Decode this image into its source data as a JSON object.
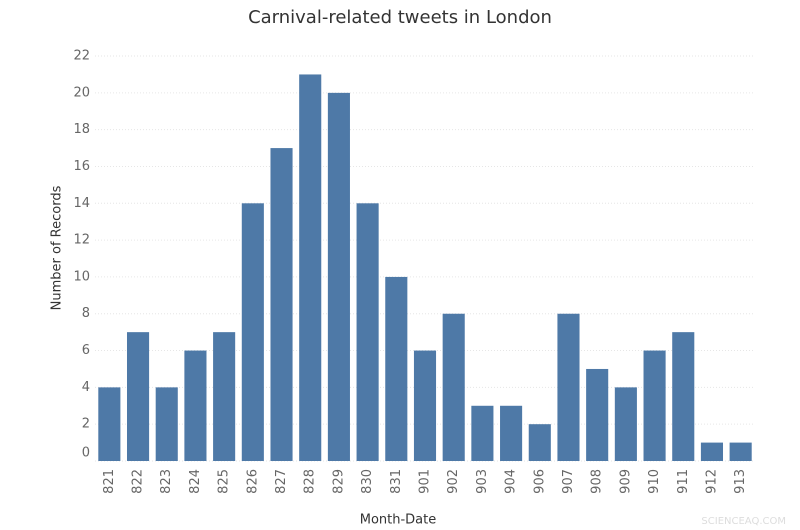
{
  "chart_data": {
    "type": "bar",
    "title": "Carnival-related tweets in London",
    "x_label": "Month-Date",
    "y_label": "Number of Records",
    "categories": [
      "821",
      "822",
      "823",
      "824",
      "825",
      "826",
      "827",
      "828",
      "829",
      "830",
      "831",
      "901",
      "902",
      "903",
      "904",
      "906",
      "907",
      "908",
      "909",
      "910",
      "911",
      "912",
      "913"
    ],
    "values": [
      4,
      7,
      4,
      6,
      7,
      14,
      17,
      21,
      20,
      14,
      10,
      6,
      8,
      3,
      3,
      2,
      8,
      5,
      4,
      6,
      7,
      1,
      1
    ],
    "color": "#4e79a7",
    "ylim": [
      0,
      22.6
    ],
    "yticks": [
      0,
      2,
      4,
      6,
      8,
      10,
      12,
      14,
      16,
      18,
      20,
      22
    ],
    "grid": true,
    "watermark": "SCIENCEAQ.COM"
  }
}
